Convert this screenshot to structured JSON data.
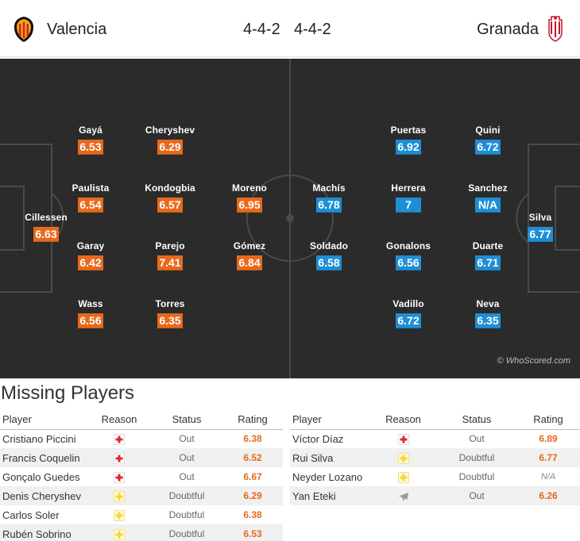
{
  "header": {
    "home_team": "Valencia",
    "away_team": "Granada",
    "home_formation": "4-4-2",
    "away_formation": "4-4-2"
  },
  "colors": {
    "home_rating": "#e8691c",
    "away_rating": "#1e8ed6",
    "pitch": "#2b2b2b"
  },
  "pitch": {
    "watermark": "© WhoScored.com",
    "home_players": [
      {
        "name": "Cillessen",
        "rating": "6.63"
      },
      {
        "name": "Gayá",
        "rating": "6.53"
      },
      {
        "name": "Paulista",
        "rating": "6.54"
      },
      {
        "name": "Garay",
        "rating": "6.42"
      },
      {
        "name": "Wass",
        "rating": "6.56"
      },
      {
        "name": "Cheryshev",
        "rating": "6.29"
      },
      {
        "name": "Kondogbia",
        "rating": "6.57"
      },
      {
        "name": "Parejo",
        "rating": "7.41"
      },
      {
        "name": "Torres",
        "rating": "6.35"
      },
      {
        "name": "Moreno",
        "rating": "6.95"
      },
      {
        "name": "Gómez",
        "rating": "6.84"
      }
    ],
    "away_players": [
      {
        "name": "Machís",
        "rating": "6.78"
      },
      {
        "name": "Soldado",
        "rating": "6.58"
      },
      {
        "name": "Puertas",
        "rating": "6.92"
      },
      {
        "name": "Herrera",
        "rating": "7"
      },
      {
        "name": "Gonalons",
        "rating": "6.56"
      },
      {
        "name": "Vadillo",
        "rating": "6.72"
      },
      {
        "name": "Quini",
        "rating": "6.72"
      },
      {
        "name": "Sanchez",
        "rating": "N/A"
      },
      {
        "name": "Duarte",
        "rating": "6.71"
      },
      {
        "name": "Neva",
        "rating": "6.35"
      },
      {
        "name": "Silva",
        "rating": "6.77"
      }
    ]
  },
  "missing": {
    "title": "Missing Players",
    "columns": {
      "player": "Player",
      "reason": "Reason",
      "status": "Status",
      "rating": "Rating"
    },
    "home": [
      {
        "player": "Cristiano Piccini",
        "reason": "injury-icon",
        "status": "Out",
        "rating": "6.38"
      },
      {
        "player": "Francis Coquelin",
        "reason": "injury-icon",
        "status": "Out",
        "rating": "6.52"
      },
      {
        "player": "Gonçalo Guedes",
        "reason": "injury-icon",
        "status": "Out",
        "rating": "6.67"
      },
      {
        "player": "Denis Cheryshev",
        "reason": "doubtful-icon",
        "status": "Doubtful",
        "rating": "6.29"
      },
      {
        "player": "Carlos Soler",
        "reason": "doubtful-icon",
        "status": "Doubtful",
        "rating": "6.38"
      },
      {
        "player": "Rubén Sobrino",
        "reason": "doubtful-icon",
        "status": "Doubtful",
        "rating": "6.53"
      }
    ],
    "away": [
      {
        "player": "Víctor Díaz",
        "reason": "injury-icon",
        "status": "Out",
        "rating": "6.89"
      },
      {
        "player": "Rui Silva",
        "reason": "doubtful-icon",
        "status": "Doubtful",
        "rating": "6.77"
      },
      {
        "player": "Neyder Lozano",
        "reason": "doubtful-icon",
        "status": "Doubtful",
        "rating": "N/A"
      },
      {
        "player": "Yan Eteki",
        "reason": "plane-icon",
        "status": "Out",
        "rating": "6.26"
      }
    ]
  }
}
